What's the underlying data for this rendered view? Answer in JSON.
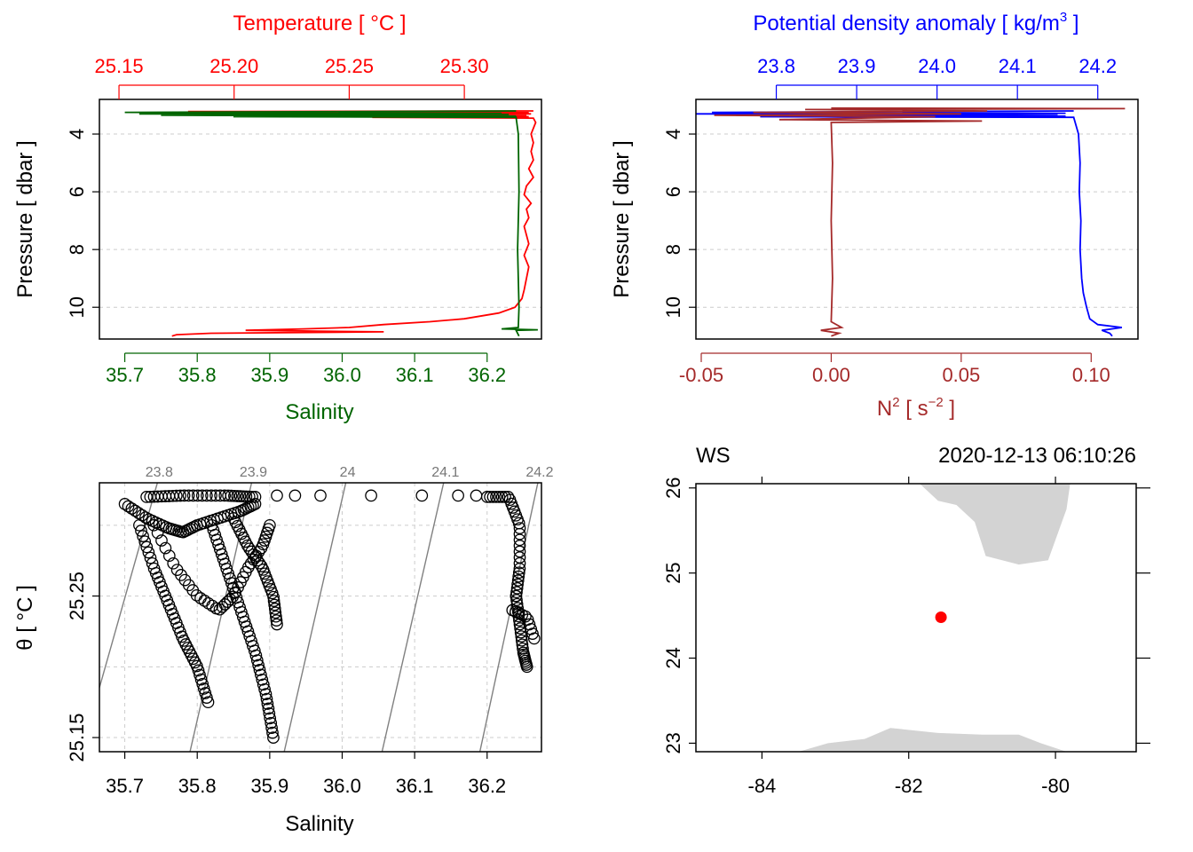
{
  "colors": {
    "temperature": "#ff0000",
    "salinity": "#006400",
    "density": "#0000ff",
    "n2": "#a52a2a",
    "station": "#ff0000",
    "land": "#d3d3d3",
    "isopycnal": "#808080"
  },
  "chart_data": [
    {
      "type": "line",
      "panel": "temperature-salinity-profile",
      "top_axis_title": "Temperature [ °C ]",
      "bottom_axis_title": "Salinity",
      "ylabel": "Pressure [ dbar ]",
      "top_ticks": [
        "25.15",
        "25.20",
        "25.25",
        "25.30"
      ],
      "bottom_ticks": [
        "35.7",
        "35.8",
        "35.9",
        "36.0",
        "36.1",
        "36.2"
      ],
      "y_ticks": [
        "4",
        "6",
        "8",
        "10"
      ],
      "xlim_temperature": [
        25.1415,
        25.3335
      ],
      "xlim_salinity": [
        35.665,
        36.275
      ],
      "ylim": [
        11.1,
        2.8
      ],
      "y_reversed": true,
      "grid": "y-dashed",
      "series": [
        {
          "key": "temperature",
          "x_axis": "top",
          "points": [
            [
              25.33,
              3.2
            ],
            [
              25.18,
              3.22
            ],
            [
              25.328,
              3.25
            ],
            [
              25.235,
              3.28
            ],
            [
              25.329,
              3.3
            ],
            [
              25.19,
              3.32
            ],
            [
              25.327,
              3.35
            ],
            [
              25.25,
              3.38
            ],
            [
              25.328,
              3.4
            ],
            [
              25.26,
              3.42
            ],
            [
              25.33,
              3.45
            ],
            [
              25.331,
              3.6
            ],
            [
              25.33,
              3.8
            ],
            [
              25.329,
              4.0
            ],
            [
              25.33,
              4.3
            ],
            [
              25.329,
              4.6
            ],
            [
              25.33,
              4.9
            ],
            [
              25.328,
              5.2
            ],
            [
              25.33,
              5.5
            ],
            [
              25.327,
              5.8
            ],
            [
              25.326,
              6.1
            ],
            [
              25.329,
              6.4
            ],
            [
              25.327,
              6.6
            ],
            [
              25.328,
              6.9
            ],
            [
              25.326,
              7.2
            ],
            [
              25.327,
              7.5
            ],
            [
              25.328,
              7.8
            ],
            [
              25.326,
              8.2
            ],
            [
              25.328,
              8.6
            ],
            [
              25.327,
              9.0
            ],
            [
              25.326,
              9.4
            ],
            [
              25.325,
              9.7
            ],
            [
              25.322,
              10.0
            ],
            [
              25.315,
              10.2
            ],
            [
              25.3,
              10.4
            ],
            [
              25.285,
              10.5
            ],
            [
              25.265,
              10.6
            ],
            [
              25.25,
              10.7
            ],
            [
              25.23,
              10.75
            ],
            [
              25.205,
              10.8
            ],
            [
              25.265,
              10.85
            ],
            [
              25.19,
              10.9
            ],
            [
              25.175,
              10.95
            ],
            [
              25.173,
              11.0
            ]
          ]
        },
        {
          "key": "salinity",
          "x_axis": "bottom",
          "points": [
            [
              36.24,
              3.2
            ],
            [
              35.7,
              3.25
            ],
            [
              36.22,
              3.28
            ],
            [
              35.72,
              3.3
            ],
            [
              36.23,
              3.32
            ],
            [
              35.75,
              3.35
            ],
            [
              36.24,
              3.38
            ],
            [
              35.85,
              3.4
            ],
            [
              36.24,
              3.42
            ],
            [
              36.243,
              4.0
            ],
            [
              36.244,
              6.0
            ],
            [
              36.242,
              8.0
            ],
            [
              36.244,
              10.0
            ],
            [
              36.243,
              10.7
            ],
            [
              36.22,
              10.75
            ],
            [
              36.27,
              10.78
            ],
            [
              36.24,
              10.8
            ],
            [
              36.244,
              11.0
            ]
          ]
        }
      ]
    },
    {
      "type": "line",
      "panel": "density-n2-profile",
      "top_axis_title": "Potential density anomaly [ kg/m",
      "top_axis_title_sup": "3",
      "top_axis_title_end": " ]",
      "bottom_axis_title": "N",
      "bottom_axis_title_sup": "2",
      "bottom_axis_title_mid": " [ s",
      "bottom_axis_title_sup2": "−2",
      "bottom_axis_title_end": " ]",
      "ylabel": "Pressure [ dbar ]",
      "top_ticks": [
        "23.8",
        "23.9",
        "24.0",
        "24.1",
        "24.2"
      ],
      "bottom_ticks": [
        "-0.05",
        "0.00",
        "0.05",
        "0.10"
      ],
      "y_ticks": [
        "4",
        "6",
        "8",
        "10"
      ],
      "xlim_density": [
        23.7,
        24.25
      ],
      "xlim_n2": [
        -0.05,
        0.118
      ],
      "ylim": [
        11.1,
        2.8
      ],
      "y_reversed": true,
      "grid": "y-dashed",
      "series": [
        {
          "key": "density",
          "x_axis": "top",
          "points": [
            [
              24.17,
              3.2
            ],
            [
              23.72,
              3.25
            ],
            [
              24.16,
              3.28
            ],
            [
              23.7,
              3.3
            ],
            [
              24.15,
              3.32
            ],
            [
              23.75,
              3.35
            ],
            [
              24.16,
              3.38
            ],
            [
              23.78,
              3.4
            ],
            [
              24.17,
              3.42
            ],
            [
              24.176,
              4.0
            ],
            [
              24.178,
              5.0
            ],
            [
              24.177,
              6.0
            ],
            [
              24.179,
              7.0
            ],
            [
              24.178,
              8.0
            ],
            [
              24.18,
              9.0
            ],
            [
              24.182,
              9.5
            ],
            [
              24.186,
              10.0
            ],
            [
              24.19,
              10.4
            ],
            [
              24.2,
              10.6
            ],
            [
              24.23,
              10.7
            ],
            [
              24.205,
              10.8
            ],
            [
              24.215,
              10.9
            ],
            [
              24.218,
              11.0
            ]
          ]
        },
        {
          "key": "n2",
          "x_axis": "bottom",
          "points": [
            [
              0.0,
              3.1
            ],
            [
              0.113,
              3.12
            ],
            [
              -0.01,
              3.15
            ],
            [
              0.06,
              3.2
            ],
            [
              -0.03,
              3.25
            ],
            [
              0.05,
              3.3
            ],
            [
              -0.045,
              3.35
            ],
            [
              0.04,
              3.4
            ],
            [
              -0.02,
              3.5
            ],
            [
              0.058,
              3.55
            ],
            [
              0.0,
              3.6
            ],
            [
              0.0005,
              5.0
            ],
            [
              0.0,
              7.0
            ],
            [
              0.0005,
              9.0
            ],
            [
              0.0,
              10.5
            ],
            [
              0.004,
              10.7
            ],
            [
              -0.004,
              10.8
            ],
            [
              0.003,
              10.9
            ],
            [
              0.0,
              11.0
            ]
          ]
        }
      ]
    },
    {
      "type": "scatter",
      "panel": "ts-diagram",
      "xlabel": "Salinity",
      "ylabel": "θ [ °C ]",
      "x_ticks": [
        "35.7",
        "35.8",
        "35.9",
        "36.0",
        "36.1",
        "36.2"
      ],
      "y_ticks": [
        "25.15",
        "25.25"
      ],
      "xlim": [
        35.665,
        36.275
      ],
      "ylim": [
        25.14,
        25.33
      ],
      "grid": "dashed",
      "isopycnal_labels": [
        "23.8",
        "23.9",
        "24",
        "24.1",
        "24.2"
      ],
      "isopycnals": [
        {
          "label": "23.8",
          "top": [
            35.745,
            25.33
          ],
          "bottom": [
            35.64,
            25.14
          ]
        },
        {
          "label": "23.9",
          "top": [
            35.875,
            25.33
          ],
          "bottom": [
            35.79,
            25.14
          ]
        },
        {
          "label": "24",
          "top": [
            36.005,
            25.33
          ],
          "bottom": [
            35.92,
            25.14
          ]
        },
        {
          "label": "24.1",
          "top": [
            36.14,
            25.33
          ],
          "bottom": [
            36.055,
            25.14
          ]
        },
        {
          "label": "24.2",
          "top": [
            36.27,
            25.33
          ],
          "bottom": [
            36.19,
            25.14
          ]
        }
      ],
      "clusters": [
        {
          "path": [
            [
              35.7,
              25.315
            ],
            [
              35.73,
              25.305
            ],
            [
              35.76,
              25.298
            ],
            [
              35.78,
              25.295
            ],
            [
              35.8,
              25.3
            ],
            [
              35.83,
              25.305
            ],
            [
              35.86,
              25.31
            ],
            [
              35.88,
              25.315
            ]
          ],
          "n": 45
        },
        {
          "path": [
            [
              35.72,
              25.3
            ],
            [
              35.74,
              25.27
            ],
            [
              35.76,
              25.245
            ],
            [
              35.78,
              25.22
            ],
            [
              35.8,
              25.2
            ],
            [
              35.815,
              25.175
            ]
          ],
          "n": 40
        },
        {
          "path": [
            [
              35.74,
              25.3
            ],
            [
              35.77,
              25.27
            ],
            [
              35.8,
              25.25
            ],
            [
              35.83,
              25.24
            ],
            [
              35.85,
              25.25
            ],
            [
              35.87,
              25.27
            ],
            [
              35.89,
              25.285
            ],
            [
              35.9,
              25.3
            ]
          ],
          "n": 40
        },
        {
          "path": [
            [
              35.82,
              25.3
            ],
            [
              35.84,
              25.27
            ],
            [
              35.86,
              25.24
            ],
            [
              35.88,
              25.21
            ],
            [
              35.895,
              25.18
            ],
            [
              35.905,
              25.15
            ]
          ],
          "n": 45
        },
        {
          "path": [
            [
              35.85,
              25.305
            ],
            [
              35.87,
              25.285
            ],
            [
              35.89,
              25.27
            ],
            [
              35.905,
              25.25
            ],
            [
              35.91,
              25.23
            ]
          ],
          "n": 30
        },
        {
          "path": [
            [
              35.73,
              25.32
            ],
            [
              35.78,
              25.321
            ],
            [
              35.84,
              25.321
            ],
            [
              35.88,
              25.32
            ]
          ],
          "n": 30
        },
        {
          "path": [
            [
              36.2,
              25.32
            ],
            [
              36.23,
              25.32
            ],
            [
              36.245,
              25.3
            ],
            [
              36.245,
              25.27
            ],
            [
              36.24,
              25.25
            ]
          ],
          "n": 30
        },
        {
          "path": [
            [
              36.24,
              25.25
            ],
            [
              36.245,
              25.23
            ],
            [
              36.25,
              25.21
            ],
            [
              36.255,
              25.2
            ]
          ],
          "n": 22
        },
        {
          "path": [
            [
              36.235,
              25.24
            ],
            [
              36.255,
              25.235
            ],
            [
              36.265,
              25.22
            ]
          ],
          "n": 10
        }
      ],
      "sparse_points": [
        [
          35.91,
          25.321
        ],
        [
          35.935,
          25.321
        ],
        [
          35.97,
          25.321
        ],
        [
          36.04,
          25.321
        ],
        [
          36.11,
          25.321
        ],
        [
          36.16,
          25.321
        ],
        [
          36.185,
          25.321
        ]
      ]
    },
    {
      "type": "map",
      "panel": "station-map",
      "x_ticks": [
        "-84",
        "-82",
        "-80"
      ],
      "y_ticks": [
        "23",
        "24",
        "25",
        "26"
      ],
      "xlim": [
        -84.9,
        -78.9
      ],
      "ylim": [
        22.9,
        26.05
      ],
      "top_left_label": "WS",
      "top_right_label": "2020-12-13 06:10:26",
      "station": {
        "lon": -81.56,
        "lat": 24.48
      },
      "land_north": [
        [
          -81.85,
          26.05
        ],
        [
          -79.8,
          26.05
        ],
        [
          -79.85,
          25.75
        ],
        [
          -80.1,
          25.15
        ],
        [
          -80.5,
          25.1
        ],
        [
          -80.95,
          25.2
        ],
        [
          -81.1,
          25.6
        ],
        [
          -81.35,
          25.8
        ],
        [
          -81.6,
          25.85
        ],
        [
          -81.85,
          26.05
        ]
      ],
      "land_south": [
        [
          -83.5,
          22.9
        ],
        [
          -83.1,
          23.0
        ],
        [
          -82.6,
          23.05
        ],
        [
          -82.25,
          23.18
        ],
        [
          -81.6,
          23.12
        ],
        [
          -81.0,
          23.1
        ],
        [
          -80.5,
          23.1
        ],
        [
          -80.2,
          23.0
        ],
        [
          -79.85,
          22.9
        ]
      ]
    }
  ]
}
